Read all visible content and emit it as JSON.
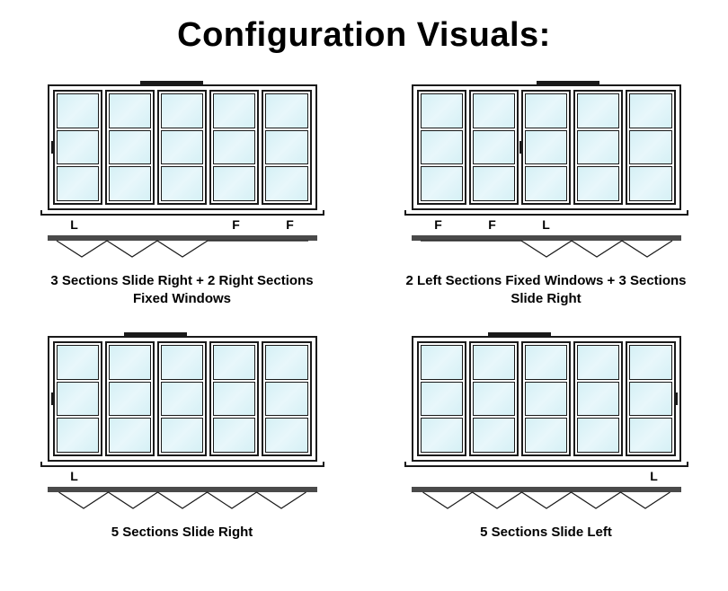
{
  "title": "Configuration Visuals:",
  "style": {
    "doorWidth": 300,
    "doorHeight": 140,
    "panelCount": 5,
    "litesPerPanel": 3,
    "frameColor": "#1a1a1a",
    "glassGradient": [
      "#d5f0f5",
      "#e8f7fb",
      "#d5f0f5"
    ],
    "background": "#ffffff",
    "titleFontSize": 38,
    "captionFontSize": 15,
    "labelFontSize": 14,
    "trackBarHeight": 6,
    "trackBarColor": "#4a4a4a",
    "zigzagStroke": "#1a1a1a"
  },
  "configs": [
    {
      "labels": [
        "L",
        "",
        "",
        "F",
        "F"
      ],
      "topHandleLeftPct": 46,
      "panelHandle": {
        "panelIndex": 0,
        "side": "left"
      },
      "trackWidth": 300,
      "zigzag": {
        "startX": 8,
        "segments": 3,
        "segW": 56,
        "dip": 18,
        "flatAfter": 112,
        "dir": "right"
      },
      "caption": "3 Sections Slide Right + 2 Right Sections Fixed Windows"
    },
    {
      "labels": [
        "F",
        "F",
        "L",
        "",
        ""
      ],
      "topHandleLeftPct": 58,
      "panelHandle": {
        "panelIndex": 2,
        "side": "left"
      },
      "trackWidth": 300,
      "zigzag": {
        "startX": 8,
        "segments": 3,
        "segW": 56,
        "dip": 18,
        "flatBefore": 112,
        "dir": "right"
      },
      "caption": "2 Left Sections Fixed Windows +  3 Sections Slide Right"
    },
    {
      "labels": [
        "L",
        "",
        "",
        "",
        ""
      ],
      "topHandleLeftPct": 40,
      "panelHandle": {
        "panelIndex": 0,
        "side": "left"
      },
      "trackWidth": 300,
      "zigzag": {
        "startX": 12,
        "segments": 5,
        "segW": 55,
        "dip": 18,
        "dir": "right"
      },
      "caption": "5 Sections Slide Right"
    },
    {
      "labels": [
        "",
        "",
        "",
        "",
        "L"
      ],
      "topHandleLeftPct": 40,
      "panelHandle": {
        "panelIndex": 4,
        "side": "right"
      },
      "trackWidth": 300,
      "zigzag": {
        "startX": 12,
        "segments": 5,
        "segW": 55,
        "dip": 18,
        "dir": "left"
      },
      "caption": "5 Sections Slide Left"
    }
  ]
}
